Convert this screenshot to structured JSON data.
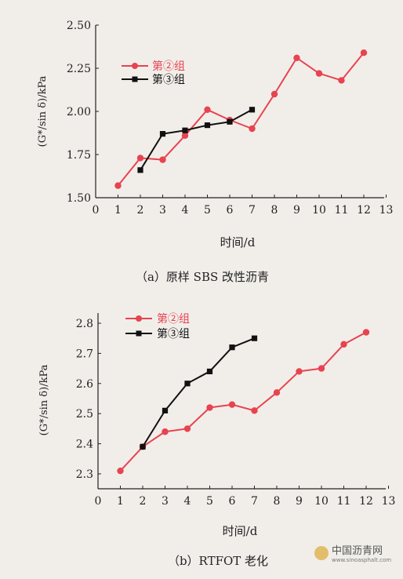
{
  "chart_data": [
    {
      "type": "line",
      "x": [
        0,
        1,
        2,
        3,
        4,
        5,
        6,
        7,
        8,
        9,
        10,
        11,
        12,
        13
      ],
      "xticks": [
        "0",
        "1",
        "2",
        "3",
        "4",
        "5",
        "6",
        "7",
        "8",
        "9",
        "10",
        "11",
        "12",
        "13"
      ],
      "xlim": [
        0,
        13
      ],
      "ylim": [
        1.5,
        2.5
      ],
      "yticks": [
        "1.50",
        "1.75",
        "2.00",
        "2.25",
        "2.50"
      ],
      "xlabel": "时间/d",
      "ylabel": "(G*/sin δ)/kPa",
      "caption": "（a）原样 SBS 改性沥青",
      "legend_position": "top-left",
      "grid": false,
      "series": [
        {
          "name": "第②组",
          "color": "#e8434f",
          "marker": "circle",
          "points": [
            [
              1,
              1.57
            ],
            [
              2,
              1.73
            ],
            [
              3,
              1.72
            ],
            [
              4,
              1.86
            ],
            [
              5,
              2.01
            ],
            [
              6,
              1.95
            ],
            [
              7,
              1.9
            ],
            [
              8,
              2.1
            ],
            [
              9,
              2.31
            ],
            [
              10,
              2.22
            ],
            [
              11,
              2.18
            ],
            [
              12,
              2.34
            ]
          ]
        },
        {
          "name": "第③组",
          "color": "#111111",
          "marker": "square",
          "points": [
            [
              2,
              1.66
            ],
            [
              3,
              1.87
            ],
            [
              4,
              1.89
            ],
            [
              5,
              1.92
            ],
            [
              6,
              1.94
            ],
            [
              7,
              2.01
            ]
          ]
        }
      ]
    },
    {
      "type": "line",
      "x": [
        0,
        1,
        2,
        3,
        4,
        5,
        6,
        7,
        8,
        9,
        10,
        11,
        12,
        13
      ],
      "xticks": [
        "0",
        "1",
        "2",
        "3",
        "4",
        "5",
        "6",
        "7",
        "8",
        "9",
        "10",
        "11",
        "12",
        "13"
      ],
      "xlim": [
        0,
        13
      ],
      "ylim": [
        2.3,
        2.8
      ],
      "yticks": [
        "2.3",
        "2.4",
        "2.5",
        "2.6",
        "2.7",
        "2.8"
      ],
      "xlabel": "时间/d",
      "ylabel": "(G*/sin δ)/kPa",
      "caption": "（b）RTFOT 老化",
      "legend_position": "top-left",
      "grid": false,
      "series": [
        {
          "name": "第②组",
          "color": "#e8434f",
          "marker": "circle",
          "points": [
            [
              1,
              2.31
            ],
            [
              2,
              2.39
            ],
            [
              3,
              2.44
            ],
            [
              4,
              2.45
            ],
            [
              5,
              2.52
            ],
            [
              6,
              2.53
            ],
            [
              7,
              2.51
            ],
            [
              8,
              2.57
            ],
            [
              9,
              2.64
            ],
            [
              10,
              2.65
            ],
            [
              11,
              2.73
            ],
            [
              12,
              2.77
            ]
          ]
        },
        {
          "name": "第③组",
          "color": "#111111",
          "marker": "square",
          "points": [
            [
              2,
              2.39
            ],
            [
              3,
              2.51
            ],
            [
              4,
              2.6
            ],
            [
              5,
              2.64
            ],
            [
              6,
              2.72
            ],
            [
              7,
              2.75
            ]
          ]
        }
      ]
    }
  ],
  "watermark": {
    "text": "中国沥青网",
    "url": "www.sinoasphalt.com"
  }
}
